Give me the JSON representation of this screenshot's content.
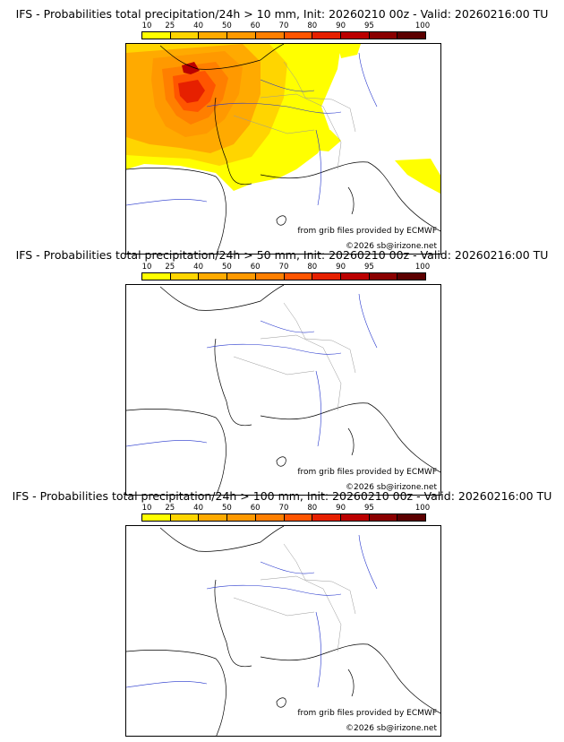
{
  "scale": {
    "labels": [
      "10",
      "25",
      "40",
      "50",
      "60",
      "70",
      "80",
      "90",
      "95",
      "100"
    ],
    "colors": [
      "#ffff00",
      "#ffd500",
      "#ffaa00",
      "#ff9900",
      "#ff7f00",
      "#ff5500",
      "#e62000",
      "#bb0000",
      "#8a0000",
      "#5c0000"
    ]
  },
  "panels": [
    {
      "title": "IFS - Probabilities total precipitation/24h > 10 mm, Init: 20260210 00z - Valid: 20260216:00 TU",
      "source": "from grib files provided by ECMWF",
      "copyright": "©2026 sb@irizone.net"
    },
    {
      "title": "IFS - Probabilities total precipitation/24h > 50 mm, Init: 20260210 00z - Valid: 20260216:00 TU",
      "source": "from grib files provided by ECMWF",
      "copyright": "©2026 sb@irizone.net"
    },
    {
      "title": "IFS - Probabilities total precipitation/24h > 100 mm, Init: 20260210 00z - Valid: 20260216:00 TU",
      "source": "from grib files provided by ECMWF",
      "copyright": "©2026 sb@irizone.net"
    }
  ]
}
